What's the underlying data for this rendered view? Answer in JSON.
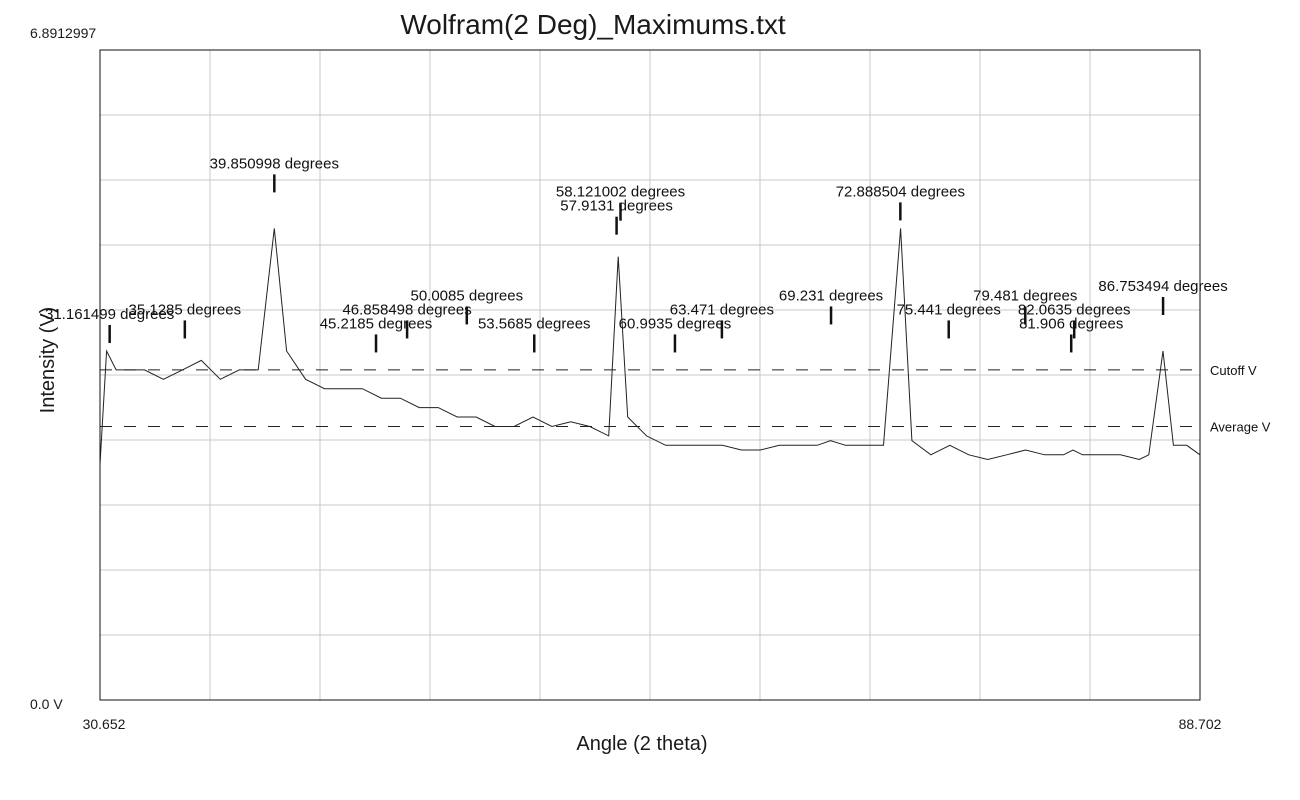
{
  "chart_data": {
    "type": "line",
    "title": "Wolfram(2 Deg)_Maximums.txt",
    "xlabel": "Angle (2 theta)",
    "ylabel": "Intensity (V)",
    "x_min_label": "30.652",
    "x_max_label": "88.702",
    "y_max_label": "6.8912997",
    "y_min_label": "0.0 V",
    "xlim": [
      30.652,
      88.702
    ],
    "ylim": [
      0.0,
      6.8912997
    ],
    "grid": true,
    "vertical_gridlines": 10,
    "horizontal_gridlines": 10,
    "reference_lines": [
      {
        "name": "Cutoff V",
        "value": 3.5
      },
      {
        "name": "Average V",
        "value": 2.9
      }
    ],
    "peaks": [
      {
        "x": 31.161499,
        "label": "31.161499 degrees"
      },
      {
        "x": 35.1285,
        "label": "35.1285 degrees"
      },
      {
        "x": 39.850998,
        "label": "39.850998 degrees"
      },
      {
        "x": 45.2185,
        "label": "45.2185 degrees"
      },
      {
        "x": 46.858498,
        "label": "46.858498 degrees"
      },
      {
        "x": 50.0085,
        "label": "50.0085 degrees"
      },
      {
        "x": 53.5685,
        "label": "53.5685 degrees"
      },
      {
        "x": 57.9131,
        "label": "57.9131 degrees"
      },
      {
        "x": 58.121002,
        "label": "58.121002 degrees"
      },
      {
        "x": 60.9935,
        "label": "60.9935 degrees"
      },
      {
        "x": 63.471,
        "label": "63.471 degrees"
      },
      {
        "x": 69.231,
        "label": "69.231 degrees"
      },
      {
        "x": 72.888504,
        "label": "72.888504 degrees"
      },
      {
        "x": 75.441,
        "label": "75.441 degrees"
      },
      {
        "x": 79.481,
        "label": "79.481 degrees"
      },
      {
        "x": 81.906,
        "label": "81.906 degrees"
      },
      {
        "x": 82.0635,
        "label": "82.0635 degrees"
      },
      {
        "x": 86.753494,
        "label": "86.753494 degrees"
      }
    ],
    "series": [
      {
        "x": [
          30.652,
          31.0,
          31.5,
          32.0,
          33.0,
          34.0,
          35.0,
          36.0,
          37.0,
          38.0,
          39.0,
          39.85,
          40.5,
          41.5,
          42.5,
          43.5,
          44.5,
          45.5,
          46.5,
          47.5,
          48.5,
          49.5,
          50.5,
          51.5,
          52.5,
          53.5,
          54.5,
          55.5,
          56.5,
          57.5,
          58.0,
          58.5,
          59.5,
          60.5,
          61.5,
          62.5,
          63.5,
          64.5,
          65.5,
          66.5,
          67.5,
          68.5,
          69.2,
          70.0,
          71.0,
          72.0,
          72.9,
          73.5,
          74.5,
          75.5,
          76.5,
          77.5,
          78.5,
          79.5,
          80.5,
          81.5,
          82.0,
          82.5,
          83.5,
          84.5,
          85.5,
          86.0,
          86.75,
          87.3,
          88.0,
          88.702
        ],
        "y": [
          2.5,
          3.7,
          3.5,
          3.5,
          3.5,
          3.4,
          3.5,
          3.6,
          3.4,
          3.5,
          3.5,
          5.0,
          3.7,
          3.4,
          3.3,
          3.3,
          3.3,
          3.2,
          3.2,
          3.1,
          3.1,
          3.0,
          3.0,
          2.9,
          2.9,
          3.0,
          2.9,
          2.95,
          2.9,
          2.8,
          4.7,
          3.0,
          2.8,
          2.7,
          2.7,
          2.7,
          2.7,
          2.65,
          2.65,
          2.7,
          2.7,
          2.7,
          2.75,
          2.7,
          2.7,
          2.7,
          5.0,
          2.75,
          2.6,
          2.7,
          2.6,
          2.55,
          2.6,
          2.65,
          2.6,
          2.6,
          2.65,
          2.6,
          2.6,
          2.6,
          2.55,
          2.6,
          3.7,
          2.7,
          2.7,
          2.6
        ]
      }
    ]
  }
}
